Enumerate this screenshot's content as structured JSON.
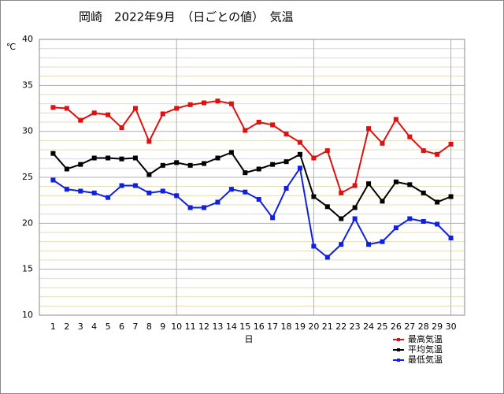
{
  "chart_data": {
    "type": "line",
    "title": "岡崎　2022年9月　（日ごとの値）　気温",
    "y_label": "℃",
    "x_label": "日",
    "x": [
      1,
      2,
      3,
      4,
      5,
      6,
      7,
      8,
      9,
      10,
      11,
      12,
      13,
      14,
      15,
      16,
      17,
      18,
      19,
      20,
      21,
      22,
      23,
      24,
      25,
      26,
      27,
      28,
      29,
      30
    ],
    "xlim": [
      0,
      31
    ],
    "xticks": [
      1,
      2,
      3,
      4,
      5,
      6,
      7,
      8,
      9,
      10,
      11,
      12,
      13,
      14,
      15,
      16,
      17,
      18,
      19,
      20,
      21,
      22,
      23,
      24,
      25,
      26,
      27,
      28,
      29,
      30
    ],
    "ylim": [
      10,
      40
    ],
    "yticks": [
      10,
      15,
      20,
      25,
      30,
      35,
      40
    ],
    "grid": true,
    "minor_grid": true,
    "legend": "bottom-right",
    "series": [
      {
        "name": "最高気温",
        "color": "#e01010",
        "values": [
          32.6,
          32.5,
          31.2,
          32.0,
          31.8,
          30.4,
          32.5,
          28.9,
          31.9,
          32.5,
          32.9,
          33.1,
          33.3,
          33.0,
          30.1,
          31.0,
          30.7,
          29.7,
          28.8,
          27.1,
          27.9,
          23.3,
          24.1,
          30.3,
          28.7,
          31.3,
          29.4,
          27.9,
          27.5,
          28.6
        ]
      },
      {
        "name": "平均気温",
        "color": "#000000",
        "values": [
          27.6,
          25.9,
          26.4,
          27.1,
          27.1,
          27.0,
          27.1,
          25.3,
          26.3,
          26.6,
          26.3,
          26.5,
          27.1,
          27.7,
          25.5,
          25.9,
          26.4,
          26.7,
          27.5,
          22.9,
          21.8,
          20.5,
          21.7,
          24.3,
          22.4,
          24.5,
          24.2,
          23.3,
          22.3,
          22.9
        ]
      },
      {
        "name": "最低気温",
        "color": "#1020e0",
        "values": [
          24.7,
          23.7,
          23.5,
          23.3,
          22.8,
          24.1,
          24.1,
          23.3,
          23.5,
          23.0,
          21.7,
          21.7,
          22.3,
          23.7,
          23.4,
          22.6,
          20.6,
          23.8,
          26.0,
          17.5,
          16.3,
          17.7,
          20.5,
          17.7,
          18.0,
          19.5,
          20.5,
          20.2,
          19.9,
          18.4
        ]
      }
    ]
  }
}
